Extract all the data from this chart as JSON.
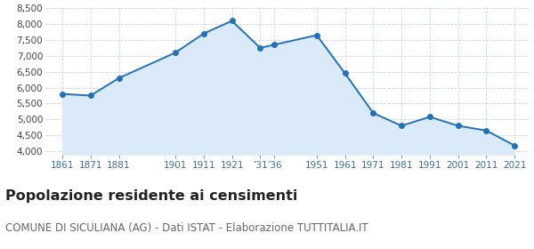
{
  "years": [
    1861,
    1871,
    1881,
    1901,
    1911,
    1921,
    1931,
    1936,
    1951,
    1961,
    1971,
    1981,
    1991,
    2001,
    2011,
    2021
  ],
  "population": [
    5800,
    5750,
    6300,
    7100,
    7700,
    8100,
    7250,
    7350,
    7650,
    6450,
    5200,
    4800,
    5080,
    4800,
    4650,
    4180
  ],
  "x_labels_map": {
    "1861": "1861",
    "1871": "1871",
    "1881": "1881",
    "1901": "1901",
    "1911": "1911",
    "1921": "1921",
    "1931": "’31",
    "1936": "’36",
    "1951": "1951",
    "1961": "1961",
    "1971": "1971",
    "1981": "1981",
    "1991": "1991",
    "2001": "2001",
    "2011": "2011",
    "2021": "2021"
  },
  "ylim": [
    3900,
    8600
  ],
  "yticks": [
    4000,
    4500,
    5000,
    5500,
    6000,
    6500,
    7000,
    7500,
    8000,
    8500
  ],
  "xlim_left": 1855,
  "xlim_right": 2026,
  "line_color": "#2471b8",
  "fill_color": "#daeaf8",
  "marker_color": "#2471b8",
  "bg_color": "#ffffff",
  "grid_color": "#c8d8e8",
  "title": "Popolazione residente ai censimenti",
  "subtitle": "COMUNE DI SICULIANA (AG) - Dati ISTAT - Elaborazione TUTTITALIA.IT",
  "title_fontsize": 11.5,
  "subtitle_fontsize": 8.5,
  "tick_fontsize": 7.5
}
